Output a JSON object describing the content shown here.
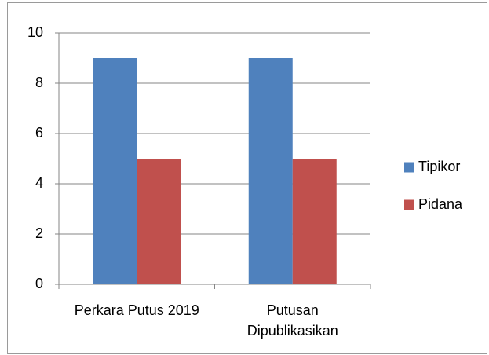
{
  "chart_data": {
    "type": "bar",
    "categories": [
      "Perkara Putus 2019",
      "Putusan Dipublikasikan"
    ],
    "series": [
      {
        "name": "Tipikor",
        "color": "#4f81bd",
        "values": [
          9,
          9
        ]
      },
      {
        "name": "Pidana",
        "color": "#c0504d",
        "values": [
          5,
          5
        ]
      }
    ],
    "ylim": [
      0,
      10
    ],
    "yticks": [
      0,
      2,
      4,
      6,
      8,
      10
    ],
    "grid": true,
    "legend": "right"
  }
}
